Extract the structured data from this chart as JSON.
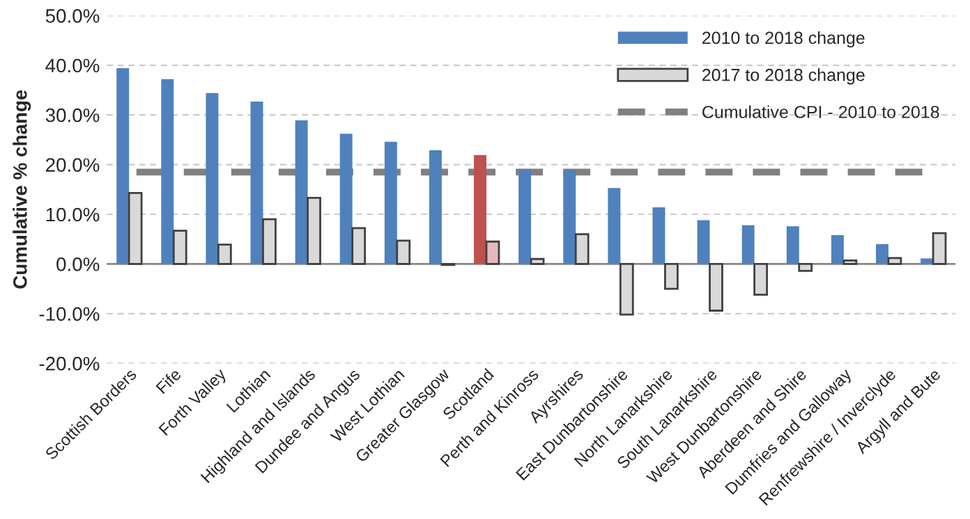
{
  "chart_data": {
    "type": "bar",
    "ylabel": "Cumulative % change",
    "categories": [
      "Scottish Borders",
      "Fife",
      "Forth Valley",
      "Lothian",
      "Highland and Islands",
      "Dundee and Angus",
      "West Lothian",
      "Greater Glasgow",
      "Scotland",
      "Perth and Kinross",
      "Ayrshires",
      "East Dunbartonshire",
      "North Lanarkshire",
      "South Lanarkshire",
      "West Dunbartonshire",
      "Aberdeen and Shire",
      "Dumfries and Galloway",
      "Renfrewshire / Inverclyde",
      "Argyll and Bute"
    ],
    "series": [
      {
        "name": "2010 to 2018 change",
        "color": "#4f81bd",
        "colors": [
          "#4f81bd",
          "#4f81bd",
          "#4f81bd",
          "#4f81bd",
          "#4f81bd",
          "#4f81bd",
          "#4f81bd",
          "#4f81bd",
          "#c0504d",
          "#4f81bd",
          "#4f81bd",
          "#4f81bd",
          "#4f81bd",
          "#4f81bd",
          "#4f81bd",
          "#4f81bd",
          "#4f81bd",
          "#4f81bd",
          "#4f81bd"
        ],
        "values": [
          39.4,
          37.2,
          34.4,
          32.7,
          28.9,
          26.2,
          24.6,
          22.9,
          21.9,
          19.1,
          18.9,
          15.3,
          11.4,
          8.8,
          7.8,
          7.6,
          5.8,
          4.0,
          1.1
        ]
      },
      {
        "name": "2017 to 2018 change",
        "color": "#d9d9d9",
        "colors": [
          "#d9d9d9",
          "#d9d9d9",
          "#d9d9d9",
          "#d9d9d9",
          "#d9d9d9",
          "#d9d9d9",
          "#d9d9d9",
          "#d9d9d9",
          "#e6b9b8",
          "#d9d9d9",
          "#d9d9d9",
          "#d9d9d9",
          "#d9d9d9",
          "#d9d9d9",
          "#d9d9d9",
          "#d9d9d9",
          "#d9d9d9",
          "#d9d9d9",
          "#d9d9d9"
        ],
        "values": [
          14.3,
          6.7,
          3.9,
          9.0,
          13.3,
          7.2,
          4.7,
          -0.2,
          4.5,
          1.0,
          6.0,
          -10.2,
          -5.0,
          -9.4,
          -6.2,
          -1.4,
          0.7,
          1.2,
          6.2
        ]
      }
    ],
    "ref_lines": [
      {
        "axis": "y",
        "value": 18.5,
        "label": "Cumulative CPI - 2010 to 2018",
        "color": "#808080",
        "line_style": "dashed"
      }
    ],
    "ylim": [
      -20,
      50
    ],
    "yticks": [
      {
        "value": -20,
        "label": "-20.0%"
      },
      {
        "value": -10,
        "label": "-10.0%"
      },
      {
        "value": 0,
        "label": "0.0%"
      },
      {
        "value": 10,
        "label": "10.0%"
      },
      {
        "value": 20,
        "label": "20.0%"
      },
      {
        "value": 30,
        "label": "30.0%"
      },
      {
        "value": 40,
        "label": "40.0%"
      },
      {
        "value": 50,
        "label": "50.0%"
      }
    ],
    "grid": "y",
    "legend": "top right"
  }
}
